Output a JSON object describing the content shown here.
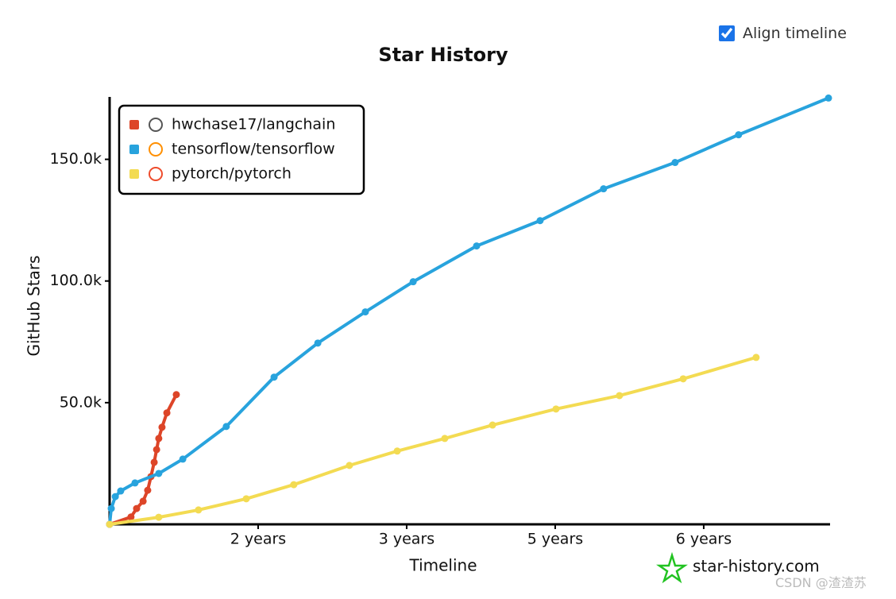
{
  "controls": {
    "align_timeline": "Align timeline"
  },
  "credit": "CSDN @渣渣苏",
  "chart_data": {
    "type": "line",
    "title": "Star History",
    "x_label": "Timeline",
    "y_label": "GitHub Stars",
    "watermark": "star-history.com",
    "legend": "top-left",
    "xlim": [
      0,
      2662
    ],
    "ylim": [
      0,
      175000
    ],
    "xticks": [
      {
        "value": 550,
        "label": "2 years"
      },
      {
        "value": 1100,
        "label": "3 years"
      },
      {
        "value": 1650,
        "label": "5 years"
      },
      {
        "value": 2200,
        "label": "6 years"
      }
    ],
    "yticks": [
      {
        "value": 50000,
        "label": "50.0k"
      },
      {
        "value": 100000,
        "label": "100.0k"
      },
      {
        "value": 150000,
        "label": "150.0k"
      }
    ],
    "series": [
      {
        "name": "hwchase17/langchain",
        "color": "#dd4528",
        "x": [
          0,
          79,
          100,
          124,
          141,
          153,
          165,
          174,
          182,
          194,
          212,
          247
        ],
        "values": [
          0,
          3000,
          6500,
          9500,
          14000,
          19600,
          25500,
          30700,
          35300,
          39900,
          45800,
          53300
        ]
      },
      {
        "name": "tensorflow/tensorflow",
        "color": "#28a3dd",
        "x": [
          0,
          6,
          21,
          41,
          94,
          182,
          271,
          432,
          609,
          771,
          947,
          1124,
          1359,
          1594,
          1829,
          2094,
          2329,
          2662
        ],
        "values": [
          0,
          6500,
          11400,
          13700,
          17000,
          20900,
          26800,
          40200,
          60500,
          74500,
          87300,
          99700,
          114400,
          124800,
          137900,
          148700,
          160100,
          175200
        ]
      },
      {
        "name": "pytorch/pytorch",
        "color": "#f3db52",
        "x": [
          0,
          182,
          329,
          506,
          682,
          888,
          1065,
          1241,
          1418,
          1653,
          1888,
          2124,
          2394
        ],
        "values": [
          0,
          2900,
          5900,
          10500,
          16300,
          24200,
          30100,
          35300,
          40800,
          47400,
          52900,
          59800,
          68600
        ]
      }
    ]
  }
}
